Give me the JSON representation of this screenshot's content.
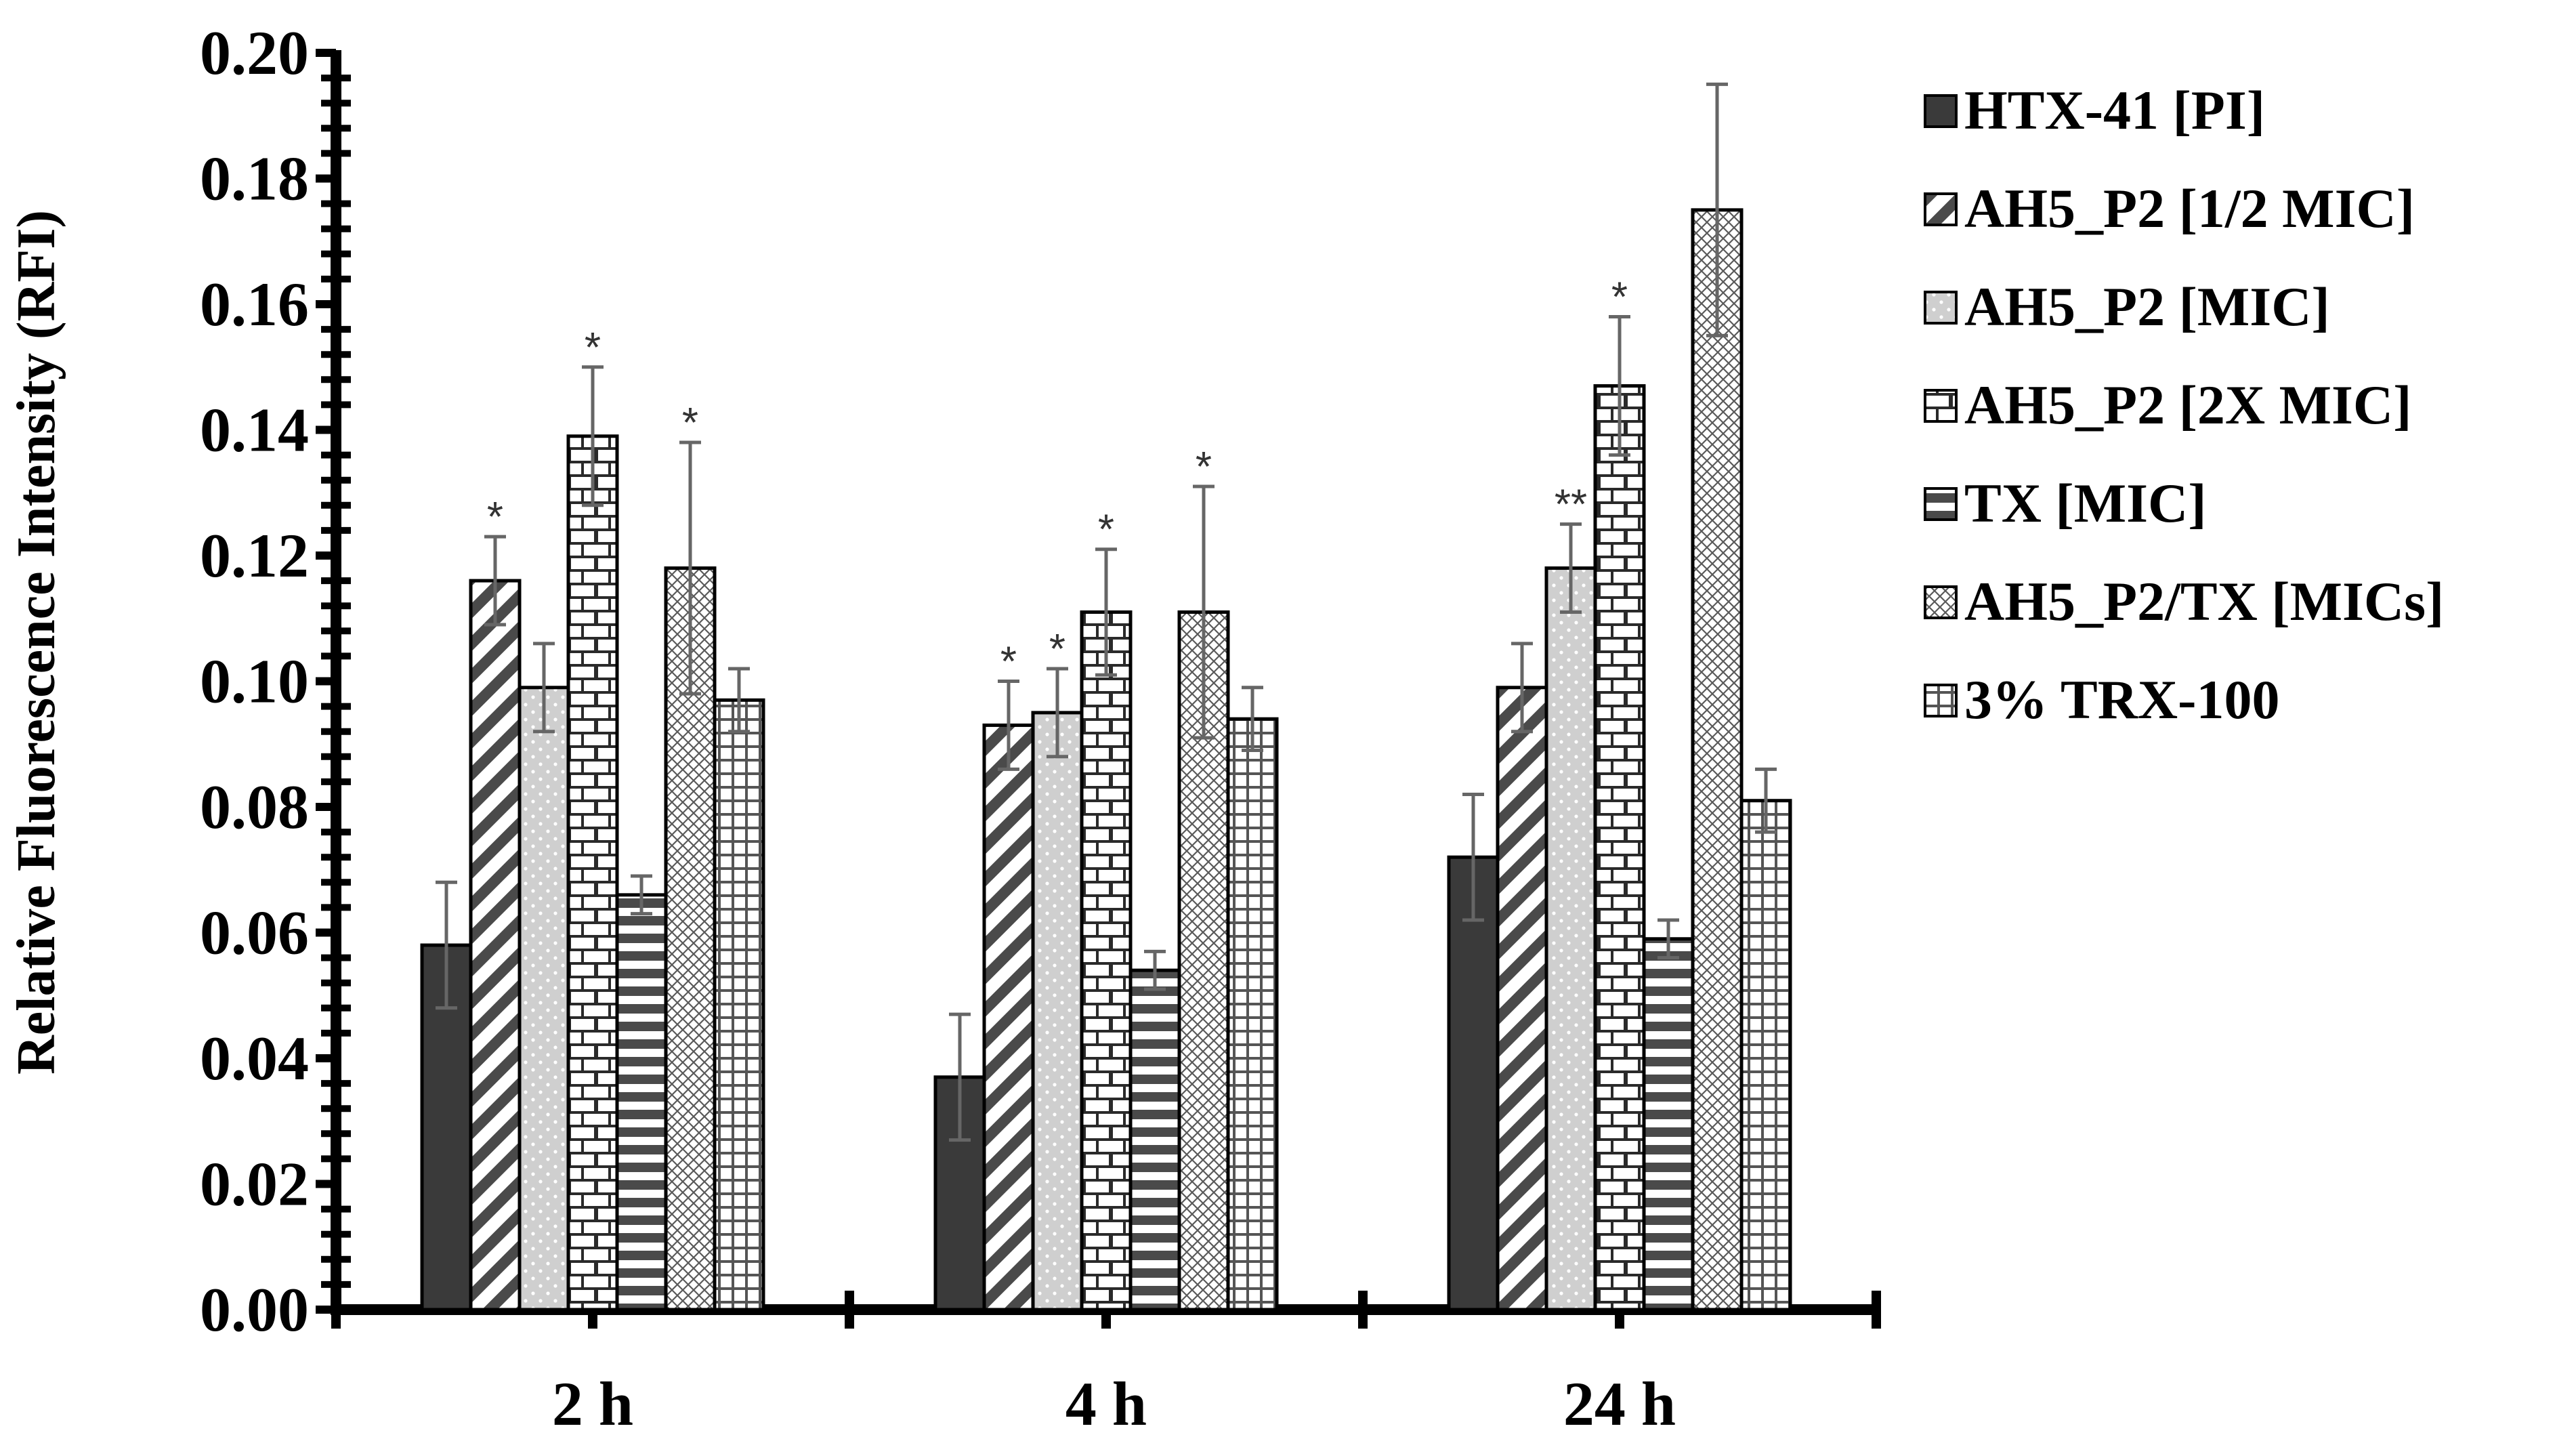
{
  "chart_data": {
    "type": "bar",
    "title": "",
    "xlabel": "",
    "ylabel": "Relative Fluorescence Intensity (RFI)",
    "ylim": [
      0,
      0.2
    ],
    "yticks": [
      "0.00",
      "0.02",
      "0.04",
      "0.06",
      "0.08",
      "0.10",
      "0.12",
      "0.14",
      "0.16",
      "0.18",
      "0.20"
    ],
    "categories": [
      "2 h",
      "4 h",
      "24 h"
    ],
    "legend_position": "right",
    "grid": false,
    "series": [
      {
        "name": "HTX-41 [PI]",
        "pattern": "solid",
        "values": [
          0.058,
          0.037,
          0.072
        ],
        "errors": [
          0.01,
          0.01,
          0.01
        ],
        "stars": [
          "",
          "",
          ""
        ]
      },
      {
        "name": "AH5_P2 [1/2 MIC]",
        "pattern": "diagonal",
        "values": [
          0.116,
          0.093,
          0.099
        ],
        "errors": [
          0.007,
          0.007,
          0.007
        ],
        "stars": [
          "*",
          "*",
          ""
        ]
      },
      {
        "name": "AH5_P2 [MIC]",
        "pattern": "dots",
        "values": [
          0.099,
          0.095,
          0.118
        ],
        "errors": [
          0.007,
          0.007,
          0.007
        ],
        "stars": [
          "",
          "*",
          "**"
        ]
      },
      {
        "name": "AH5_P2 [2X MIC]",
        "pattern": "brick",
        "values": [
          0.139,
          0.111,
          0.147
        ],
        "errors": [
          0.011,
          0.01,
          0.011
        ],
        "stars": [
          "*",
          "*",
          "*"
        ]
      },
      {
        "name": "TX [MIC]",
        "pattern": "hstripes",
        "values": [
          0.066,
          0.054,
          0.059
        ],
        "errors": [
          0.003,
          0.003,
          0.003
        ],
        "stars": [
          "",
          "",
          ""
        ]
      },
      {
        "name": "AH5_P2/TX [MICs]",
        "pattern": "crosshatch",
        "values": [
          0.118,
          0.111,
          0.175
        ],
        "errors": [
          0.02,
          0.02,
          0.02
        ],
        "stars": [
          "*",
          "*",
          ""
        ]
      },
      {
        "name": "3% TRX-100",
        "pattern": "grid",
        "values": [
          0.097,
          0.094,
          0.081
        ],
        "errors": [
          0.005,
          0.005,
          0.005
        ],
        "stars": [
          "",
          "",
          ""
        ]
      }
    ]
  }
}
